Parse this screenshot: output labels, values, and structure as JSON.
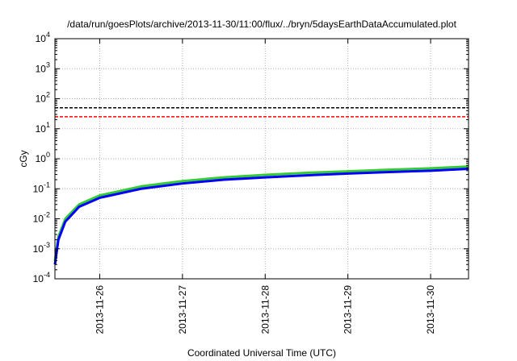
{
  "chart_data": {
    "type": "line",
    "title": "/data/run/goesPlots/archive/2013-11-30/11:00/flux/../bryn/5daysEarthDataAccumulated.plot",
    "xlabel": "Coordinated Universal Time (UTC)",
    "ylabel": "cGy",
    "x_scale": "time",
    "y_scale": "log",
    "xlim": [
      "2013-11-25T11:00",
      "2013-11-30T11:00"
    ],
    "ylim": [
      0.0001,
      10000
    ],
    "x_ticks": [
      "2013-11-26",
      "2013-11-27",
      "2013-11-28",
      "2013-11-29",
      "2013-11-30"
    ],
    "y_ticks": [
      {
        "base": "10",
        "exp": "-4"
      },
      {
        "base": "10",
        "exp": "-3"
      },
      {
        "base": "10",
        "exp": "-2"
      },
      {
        "base": "10",
        "exp": "-1"
      },
      {
        "base": "10",
        "exp": "0"
      },
      {
        "base": "10",
        "exp": "1"
      },
      {
        "base": "10",
        "exp": "2"
      },
      {
        "base": "10",
        "exp": "3"
      },
      {
        "base": "10",
        "exp": "4"
      }
    ],
    "grid": true,
    "legend": false,
    "series": [
      {
        "color": "#33cc33",
        "style": "solid",
        "x": [
          "2013-11-25T11:00",
          "2013-11-25T12:00",
          "2013-11-25T14:00",
          "2013-11-25T18:00",
          "2013-11-26T00:00",
          "2013-11-26T12:00",
          "2013-11-27T00:00",
          "2013-11-27T12:00",
          "2013-11-28T00:00",
          "2013-11-28T12:00",
          "2013-11-29T00:00",
          "2013-11-29T12:00",
          "2013-11-30T00:00",
          "2013-11-30T11:00"
        ],
        "y": [
          0.0004,
          0.0025,
          0.01,
          0.03,
          0.06,
          0.12,
          0.18,
          0.24,
          0.29,
          0.34,
          0.38,
          0.43,
          0.48,
          0.55
        ]
      },
      {
        "color": "#0000ff",
        "style": "solid",
        "x": [
          "2013-11-25T11:00",
          "2013-11-25T12:00",
          "2013-11-25T14:00",
          "2013-11-25T18:00",
          "2013-11-26T00:00",
          "2013-11-26T12:00",
          "2013-11-27T00:00",
          "2013-11-27T12:00",
          "2013-11-28T00:00",
          "2013-11-28T12:00",
          "2013-11-29T00:00",
          "2013-11-29T12:00",
          "2013-11-30T00:00",
          "2013-11-30T11:00"
        ],
        "y": [
          0.0003,
          0.002,
          0.008,
          0.025,
          0.05,
          0.1,
          0.15,
          0.2,
          0.24,
          0.28,
          0.32,
          0.36,
          0.4,
          0.46
        ]
      },
      {
        "color": "#000000",
        "style": "dashed",
        "x": [
          "2013-11-25T11:00",
          "2013-11-30T11:00"
        ],
        "y": [
          50,
          50
        ]
      },
      {
        "color": "#ff0000",
        "style": "dashed",
        "x": [
          "2013-11-25T11:00",
          "2013-11-30T11:00"
        ],
        "y": [
          25,
          25
        ]
      }
    ]
  }
}
